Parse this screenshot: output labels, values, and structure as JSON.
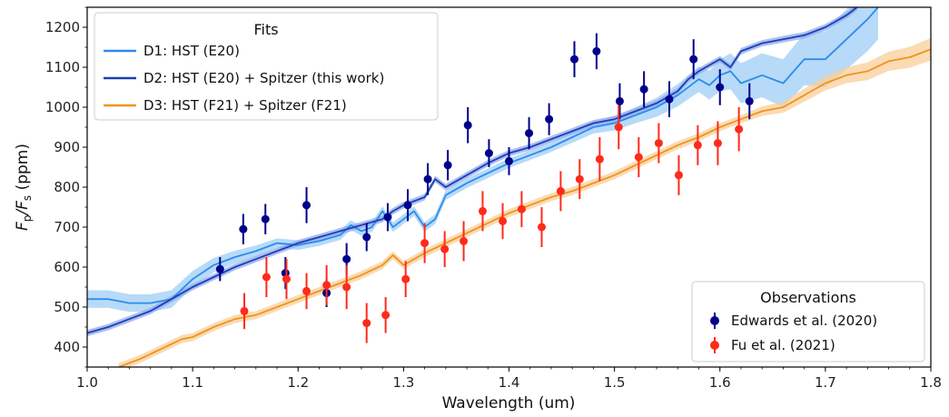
{
  "chart_data": {
    "type": "line",
    "title": "",
    "xlabel": "Wavelength (um)",
    "ylabel": "Fp/Fs (ppm)",
    "ylabel_main": "F",
    "ylabel_sub1": "p",
    "ylabel_mid": "/F",
    "ylabel_sub2": "s",
    "ylabel_tail": " (ppm)",
    "xlim": [
      1.0,
      1.8
    ],
    "ylim": [
      350,
      1250
    ],
    "xticks": [
      1.0,
      1.1,
      1.2,
      1.3,
      1.4,
      1.5,
      1.6,
      1.7,
      1.8
    ],
    "xtick_labels": [
      "1.0",
      "1.1",
      "1.2",
      "1.3",
      "1.4",
      "1.5",
      "1.6",
      "1.7",
      "1.8"
    ],
    "yticks": [
      400,
      500,
      600,
      700,
      800,
      900,
      1000,
      1100,
      1200
    ],
    "ytick_labels": [
      "400",
      "500",
      "600",
      "700",
      "800",
      "900",
      "1000",
      "1100",
      "1200"
    ],
    "grid": false,
    "fits_legend": {
      "title": "Fits",
      "placement": "top-left",
      "entries": [
        "D1: HST (E20)",
        "D2: HST (E20) + Spitzer (this work)",
        "D3: HST (F21) + Spitzer (F21)"
      ]
    },
    "observations_legend": {
      "title": "Observations",
      "placement": "bottom-right",
      "entries": [
        "Edwards et al. (2020)",
        "Fu et al. (2021)"
      ]
    },
    "models": [
      {
        "name": "D1: HST (E20)",
        "color": "#2b8cee",
        "band_color": "#9fcdf6",
        "x": [
          1.0,
          1.02,
          1.04,
          1.06,
          1.08,
          1.1,
          1.12,
          1.14,
          1.16,
          1.18,
          1.2,
          1.22,
          1.24,
          1.25,
          1.26,
          1.27,
          1.28,
          1.29,
          1.3,
          1.31,
          1.32,
          1.33,
          1.34,
          1.36,
          1.38,
          1.4,
          1.42,
          1.44,
          1.46,
          1.48,
          1.5,
          1.52,
          1.54,
          1.56,
          1.58,
          1.59,
          1.6,
          1.61,
          1.62,
          1.64,
          1.66,
          1.68,
          1.7,
          1.72,
          1.74,
          1.75
        ],
        "y": [
          520,
          520,
          510,
          510,
          520,
          570,
          605,
          625,
          640,
          660,
          655,
          665,
          680,
          705,
          690,
          700,
          740,
          700,
          720,
          740,
          700,
          720,
          780,
          810,
          835,
          860,
          880,
          900,
          925,
          950,
          960,
          980,
          1000,
          1030,
          1070,
          1055,
          1080,
          1090,
          1060,
          1080,
          1060,
          1120,
          1120,
          1170,
          1220,
          1250
        ],
        "band": [
          22,
          22,
          22,
          22,
          22,
          20,
          18,
          16,
          14,
          12,
          12,
          12,
          12,
          12,
          12,
          12,
          12,
          12,
          12,
          12,
          12,
          12,
          12,
          12,
          12,
          12,
          12,
          12,
          14,
          16,
          18,
          20,
          24,
          28,
          32,
          36,
          40,
          45,
          50,
          55,
          60,
          65,
          70,
          75,
          80,
          80
        ]
      },
      {
        "name": "D2: HST (E20) + Spitzer (this work)",
        "color": "#1c3fb5",
        "band_color": "#8fa8ee",
        "x": [
          1.0,
          1.02,
          1.04,
          1.06,
          1.08,
          1.1,
          1.12,
          1.14,
          1.16,
          1.18,
          1.2,
          1.22,
          1.24,
          1.26,
          1.28,
          1.29,
          1.3,
          1.32,
          1.33,
          1.34,
          1.36,
          1.38,
          1.4,
          1.42,
          1.44,
          1.46,
          1.48,
          1.5,
          1.52,
          1.54,
          1.56,
          1.57,
          1.58,
          1.6,
          1.61,
          1.62,
          1.64,
          1.66,
          1.68,
          1.7,
          1.72,
          1.73
        ],
        "y": [
          435,
          450,
          470,
          490,
          520,
          550,
          575,
          600,
          620,
          640,
          660,
          675,
          690,
          705,
          720,
          740,
          755,
          775,
          820,
          800,
          830,
          860,
          885,
          900,
          920,
          940,
          960,
          970,
          990,
          1010,
          1040,
          1070,
          1090,
          1120,
          1100,
          1140,
          1160,
          1170,
          1180,
          1200,
          1230,
          1250
        ],
        "band": [
          8,
          8,
          8,
          8,
          8,
          8,
          8,
          8,
          8,
          8,
          8,
          8,
          8,
          8,
          8,
          8,
          8,
          8,
          8,
          8,
          8,
          8,
          8,
          8,
          8,
          8,
          8,
          8,
          8,
          8,
          8,
          8,
          8,
          8,
          8,
          8,
          8,
          8,
          8,
          8,
          8,
          8
        ]
      },
      {
        "name": "D3: HST (F21) + Spitzer (F21)",
        "color": "#f0931e",
        "band_color": "#f8cf9a",
        "x": [
          1.03,
          1.05,
          1.07,
          1.09,
          1.1,
          1.12,
          1.14,
          1.16,
          1.18,
          1.2,
          1.22,
          1.24,
          1.26,
          1.28,
          1.29,
          1.3,
          1.32,
          1.34,
          1.36,
          1.38,
          1.4,
          1.42,
          1.44,
          1.46,
          1.48,
          1.5,
          1.52,
          1.54,
          1.56,
          1.58,
          1.6,
          1.62,
          1.64,
          1.66,
          1.68,
          1.7,
          1.72,
          1.74,
          1.76,
          1.78,
          1.8
        ],
        "y": [
          350,
          370,
          395,
          420,
          425,
          450,
          470,
          480,
          500,
          520,
          540,
          560,
          580,
          605,
          630,
          605,
          635,
          660,
          685,
          710,
          735,
          755,
          775,
          790,
          810,
          830,
          855,
          880,
          905,
          925,
          950,
          970,
          990,
          1000,
          1030,
          1060,
          1080,
          1090,
          1115,
          1125,
          1145
        ],
        "band": [
          10,
          10,
          10,
          10,
          10,
          10,
          10,
          10,
          10,
          10,
          10,
          10,
          10,
          10,
          10,
          10,
          10,
          10,
          10,
          10,
          10,
          10,
          10,
          10,
          10,
          10,
          10,
          10,
          10,
          10,
          10,
          10,
          12,
          14,
          16,
          18,
          20,
          22,
          24,
          26,
          28
        ]
      }
    ],
    "observations": [
      {
        "name": "Edwards et al. (2020)",
        "color": "#00008b",
        "x": [
          1.126,
          1.148,
          1.169,
          1.188,
          1.208,
          1.227,
          1.246,
          1.265,
          1.285,
          1.304,
          1.323,
          1.342,
          1.361,
          1.381,
          1.4,
          1.419,
          1.438,
          1.462,
          1.483,
          1.505,
          1.528,
          1.552,
          1.575,
          1.6,
          1.628
        ],
        "y": [
          595,
          695,
          720,
          585,
          755,
          535,
          620,
          675,
          725,
          755,
          820,
          855,
          955,
          885,
          865,
          935,
          970,
          1120,
          1140,
          1015,
          1045,
          1020,
          1120,
          1050,
          1015
        ],
        "err": [
          30,
          38,
          38,
          40,
          45,
          35,
          40,
          35,
          35,
          40,
          40,
          38,
          45,
          35,
          35,
          40,
          40,
          45,
          45,
          45,
          45,
          45,
          50,
          45,
          45
        ]
      },
      {
        "name": "Fu et al. (2021)",
        "color": "#ff2a1a",
        "x": [
          1.149,
          1.17,
          1.189,
          1.208,
          1.227,
          1.246,
          1.265,
          1.283,
          1.302,
          1.32,
          1.339,
          1.357,
          1.375,
          1.394,
          1.412,
          1.431,
          1.449,
          1.467,
          1.486,
          1.504,
          1.523,
          1.542,
          1.561,
          1.579,
          1.598,
          1.618
        ],
        "y": [
          490,
          575,
          570,
          540,
          555,
          550,
          460,
          480,
          570,
          660,
          645,
          665,
          740,
          715,
          745,
          700,
          790,
          820,
          870,
          950,
          875,
          910,
          830,
          905,
          910,
          945
        ],
        "err": [
          45,
          50,
          50,
          45,
          50,
          55,
          50,
          45,
          45,
          50,
          45,
          50,
          50,
          45,
          45,
          50,
          50,
          50,
          55,
          55,
          50,
          50,
          50,
          50,
          55,
          55
        ]
      }
    ]
  }
}
